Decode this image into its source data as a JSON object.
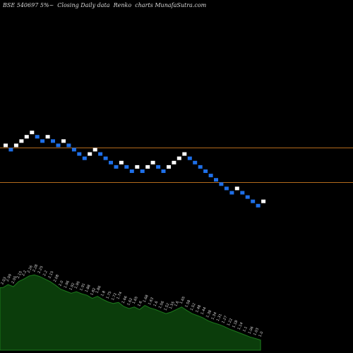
{
  "title": "BSE 540697 5%~  Closing Daily data  Renko  charts MunafaSutra.com",
  "colors": {
    "background": "#000000",
    "up_brick": "#ffffff",
    "down_brick": "#1e6fe8",
    "reference_line": "#b36a1c",
    "area_fill": "#0b3d0b",
    "area_line": "#1c7a1c",
    "text": "#d8d8d8"
  },
  "chart_data": [
    {
      "type": "renko",
      "description_text": "",
      "bricks": [
        {
          "dir": "up",
          "level": 1
        },
        {
          "dir": "down",
          "level": 0
        },
        {
          "dir": "up",
          "level": 1
        },
        {
          "dir": "up",
          "level": 2
        },
        {
          "dir": "up",
          "level": 3
        },
        {
          "dir": "up",
          "level": 4
        },
        {
          "dir": "down",
          "level": 3
        },
        {
          "dir": "down",
          "level": 2
        },
        {
          "dir": "up",
          "level": 3
        },
        {
          "dir": "down",
          "level": 2
        },
        {
          "dir": "down",
          "level": 1
        },
        {
          "dir": "up",
          "level": 2
        },
        {
          "dir": "down",
          "level": 1
        },
        {
          "dir": "down",
          "level": 0
        },
        {
          "dir": "down",
          "level": -1
        },
        {
          "dir": "down",
          "level": -2
        },
        {
          "dir": "up",
          "level": -1
        },
        {
          "dir": "up",
          "level": 0
        },
        {
          "dir": "down",
          "level": -1
        },
        {
          "dir": "down",
          "level": -2
        },
        {
          "dir": "down",
          "level": -3
        },
        {
          "dir": "down",
          "level": -4
        },
        {
          "dir": "up",
          "level": -3
        },
        {
          "dir": "down",
          "level": -4
        },
        {
          "dir": "down",
          "level": -5
        },
        {
          "dir": "up",
          "level": -4
        },
        {
          "dir": "down",
          "level": -5
        },
        {
          "dir": "up",
          "level": -4
        },
        {
          "dir": "up",
          "level": -3
        },
        {
          "dir": "down",
          "level": -4
        },
        {
          "dir": "down",
          "level": -5
        },
        {
          "dir": "up",
          "level": -4
        },
        {
          "dir": "up",
          "level": -3
        },
        {
          "dir": "up",
          "level": -2
        },
        {
          "dir": "up",
          "level": -1
        },
        {
          "dir": "down",
          "level": -2
        },
        {
          "dir": "down",
          "level": -3
        },
        {
          "dir": "down",
          "level": -4
        },
        {
          "dir": "down",
          "level": -5
        },
        {
          "dir": "down",
          "level": -6
        },
        {
          "dir": "down",
          "level": -7
        },
        {
          "dir": "down",
          "level": -8
        },
        {
          "dir": "down",
          "level": -9
        },
        {
          "dir": "down",
          "level": -10
        },
        {
          "dir": "up",
          "level": -9
        },
        {
          "dir": "down",
          "level": -10
        },
        {
          "dir": "down",
          "level": -11
        },
        {
          "dir": "down",
          "level": -12
        },
        {
          "dir": "down",
          "level": -13
        },
        {
          "dir": "up",
          "level": -12
        }
      ],
      "reference_levels": [
        0.5,
        -7.5
      ]
    },
    {
      "type": "area",
      "values": [
        2.03,
        2.09,
        2.05,
        2.15,
        2.2,
        2.26,
        2.28,
        2.25,
        2.2,
        2.15,
        2.08,
        2.0,
        1.96,
        1.92,
        1.95,
        1.91,
        1.88,
        1.82,
        1.86,
        1.8,
        1.75,
        1.72,
        1.74,
        1.66,
        1.62,
        1.65,
        1.6,
        1.68,
        1.63,
        1.6,
        1.56,
        1.52,
        1.55,
        1.6,
        1.65,
        1.58,
        1.52,
        1.48,
        1.44,
        1.38,
        1.34,
        1.31,
        1.27,
        1.22,
        1.18,
        1.14,
        1.1,
        1.06,
        1.03,
        1.0
      ],
      "labels": [
        "2.03",
        "2.09",
        "2.05",
        "2.15",
        "2.2",
        "2.26",
        "2.28",
        "2.25",
        "2.2",
        "2.15",
        "2.08",
        "2.0",
        "1.96",
        "1.92",
        "1.95",
        "1.91",
        "1.88",
        "1.82",
        "1.86",
        "1.8",
        "1.75",
        "1.72",
        "1.74",
        "1.66",
        "1.62",
        "1.65",
        "1.6",
        "1.68",
        "1.63",
        "1.6",
        "1.56",
        "1.52",
        "1.55",
        "1.6",
        "1.65",
        "1.58",
        "1.52",
        "1.48",
        "1.44",
        "1.38",
        "1.34",
        "1.31",
        "1.27",
        "1.22",
        "1.18",
        "1.14",
        "1.1",
        "1.06",
        "1.03",
        "1.0"
      ]
    }
  ]
}
